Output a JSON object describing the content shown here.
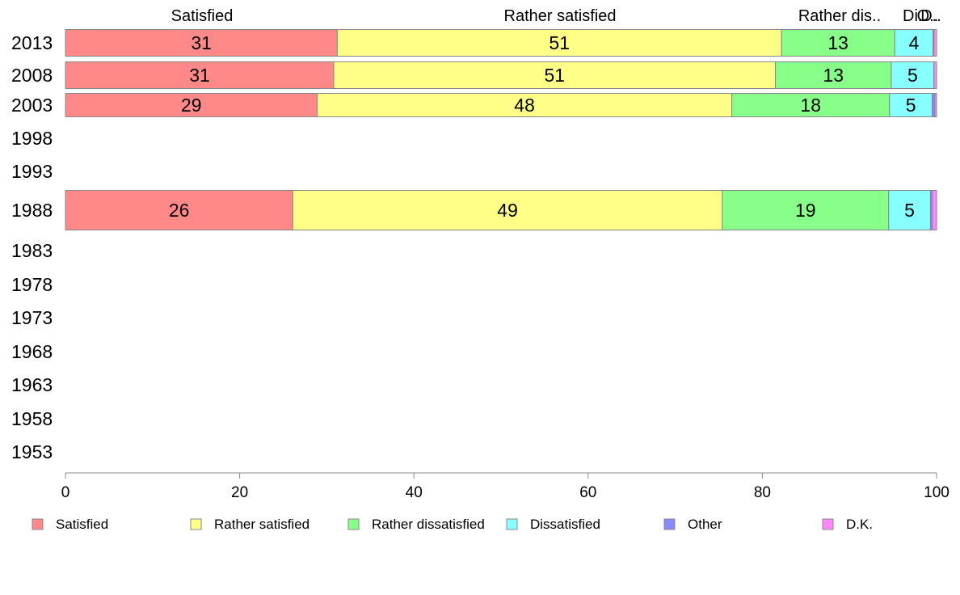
{
  "chart_data": {
    "type": "bar",
    "orientation": "horizontal",
    "stacked": true,
    "grid": false,
    "legend_position": "bottom",
    "xlim": [
      0,
      100
    ],
    "x_ticks": [
      "0",
      "20",
      "40",
      "60",
      "80",
      "100"
    ],
    "categories": [
      "2013",
      "2008",
      "2003",
      "1998",
      "1993",
      "1988",
      "1983",
      "1978",
      "1973",
      "1968",
      "1963",
      "1958",
      "1953"
    ],
    "header_labels": [
      "Satisfied",
      "Rather satisfied",
      "Rather dis..",
      "Di..",
      "O..",
      "D.."
    ],
    "series": [
      {
        "name": "Satisfied",
        "color": "#ff8888",
        "values": [
          31.2,
          30.8,
          28.9,
          null,
          null,
          26.1,
          null,
          null,
          null,
          null,
          null,
          null,
          null
        ],
        "labels": [
          "31",
          "31",
          "29",
          "",
          "",
          "26",
          "",
          "",
          "",
          "",
          "",
          "",
          ""
        ]
      },
      {
        "name": "Rather satisfied",
        "color": "#ffff88",
        "values": [
          51.0,
          50.7,
          47.6,
          null,
          null,
          49.3,
          null,
          null,
          null,
          null,
          null,
          null,
          null
        ],
        "labels": [
          "51",
          "51",
          "48",
          "",
          "",
          "49",
          "",
          "",
          "",
          "",
          "",
          "",
          ""
        ]
      },
      {
        "name": "Rather dissatisfied",
        "color": "#88ff88",
        "values": [
          13.0,
          13.3,
          18.1,
          null,
          null,
          19.1,
          null,
          null,
          null,
          null,
          null,
          null,
          null
        ],
        "labels": [
          "13",
          "13",
          "18",
          "",
          "",
          "19",
          "",
          "",
          "",
          "",
          "",
          "",
          ""
        ]
      },
      {
        "name": "Dissatisfied",
        "color": "#88ffff",
        "values": [
          4.4,
          4.9,
          4.9,
          null,
          null,
          4.8,
          null,
          null,
          null,
          null,
          null,
          null,
          null
        ],
        "labels": [
          "4",
          "5",
          "5",
          "",
          "",
          "5",
          "",
          "",
          "",
          "",
          "",
          "",
          ""
        ]
      },
      {
        "name": "Other",
        "color": "#8888ff",
        "values": [
          0.1,
          0.0,
          0.3,
          null,
          null,
          0.2,
          null,
          null,
          null,
          null,
          null,
          null,
          null
        ],
        "labels": [
          "",
          "",
          "",
          "",
          "",
          "",
          "",
          "",
          "",
          "",
          "",
          "",
          ""
        ]
      },
      {
        "name": "D.K.",
        "color": "#ff88ff",
        "values": [
          0.3,
          0.3,
          0.2,
          null,
          null,
          0.5,
          null,
          null,
          null,
          null,
          null,
          null,
          null
        ],
        "labels": [
          "",
          "",
          "",
          "",
          "",
          "",
          "",
          "",
          "",
          "",
          "",
          "",
          ""
        ]
      }
    ]
  }
}
